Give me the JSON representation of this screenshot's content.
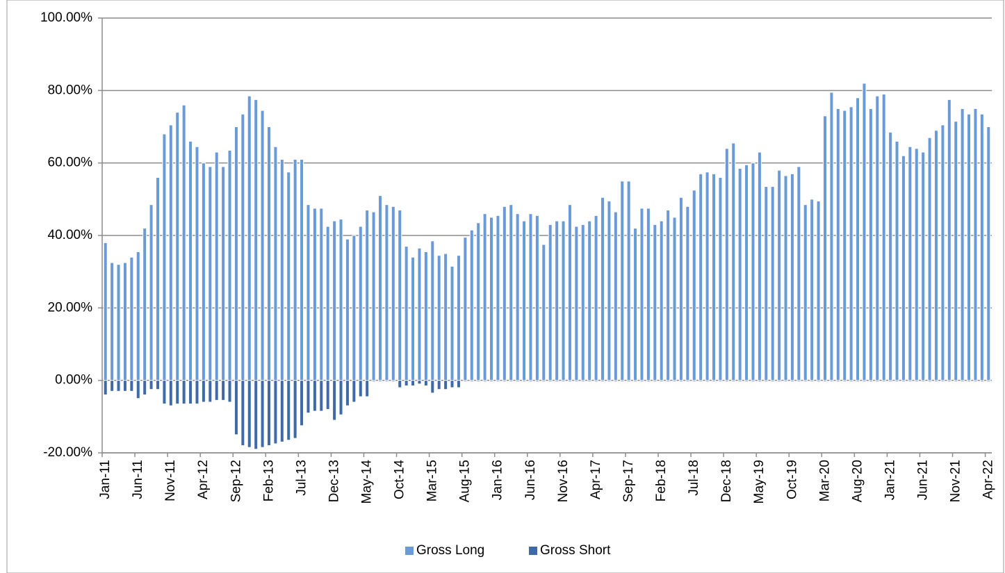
{
  "chart_data": {
    "type": "bar",
    "categories": [
      "Jan-11",
      null,
      null,
      null,
      null,
      "Jun-11",
      null,
      null,
      null,
      null,
      "Nov-11",
      null,
      null,
      null,
      null,
      "Apr-12",
      null,
      null,
      null,
      null,
      "Sep-12",
      null,
      null,
      null,
      null,
      "Feb-13",
      null,
      null,
      null,
      null,
      "Jul-13",
      null,
      null,
      null,
      null,
      "Dec-13",
      null,
      null,
      null,
      null,
      "May-14",
      null,
      null,
      null,
      null,
      "Oct-14",
      null,
      null,
      null,
      null,
      "Mar-15",
      null,
      null,
      null,
      null,
      "Aug-15",
      null,
      null,
      null,
      null,
      "Jan-16",
      null,
      null,
      null,
      null,
      "Jun-16",
      null,
      null,
      null,
      null,
      "Nov-16",
      null,
      null,
      null,
      null,
      "Apr-17",
      null,
      null,
      null,
      null,
      "Sep-17",
      null,
      null,
      null,
      null,
      "Feb-18",
      null,
      null,
      null,
      null,
      "Jul-18",
      null,
      null,
      null,
      null,
      "Dec-18",
      null,
      null,
      null,
      null,
      "May-19",
      null,
      null,
      null,
      null,
      "Oct-19",
      null,
      null,
      null,
      null,
      "Mar-20",
      null,
      null,
      null,
      null,
      "Aug-20",
      null,
      null,
      null,
      null,
      "Jan-21",
      null,
      null,
      null,
      null,
      "Jun-21",
      null,
      null,
      null,
      null,
      "Nov-21",
      null,
      null,
      null,
      null,
      "Apr-22"
    ],
    "series": [
      {
        "name": "Gross Long",
        "color": "#6a9bd8",
        "values": [
          38,
          32.5,
          32,
          32.5,
          34,
          35.5,
          42,
          48.5,
          56,
          68,
          70.5,
          74,
          76,
          66,
          64.5,
          60,
          59,
          63,
          59,
          63.5,
          70,
          73.5,
          78.5,
          77.5,
          74.5,
          70,
          64.5,
          61,
          57.5,
          61,
          61,
          48.5,
          47.5,
          47.5,
          42.5,
          44,
          44.5,
          39,
          40,
          42.5,
          47,
          46.5,
          51,
          48.5,
          48,
          47,
          37,
          34,
          36.5,
          35.5,
          38.5,
          34.5,
          35,
          31.5,
          34.5,
          39.5,
          41.5,
          43.5,
          46,
          45,
          45.5,
          48,
          48.5,
          46,
          44,
          46,
          45.5,
          37.5,
          43,
          44,
          44,
          48.5,
          42.5,
          43,
          44,
          45.5,
          50.5,
          49.5,
          46.5,
          55,
          55,
          42,
          47.5,
          47.5,
          43,
          44,
          47,
          45,
          50.5,
          48,
          52.5,
          57,
          57.5,
          57,
          56,
          64,
          65.5,
          58.5,
          59.5,
          60,
          63,
          53.5,
          53.5,
          58,
          56.5,
          57,
          59,
          48.5,
          50,
          49.5,
          73,
          79.5,
          75,
          74.5,
          75.5,
          78,
          82,
          75,
          78.5,
          79,
          68.5,
          66,
          62,
          64.5,
          64,
          63,
          67,
          69,
          70.5,
          77.5,
          71.5,
          75,
          73.5,
          75,
          73.5,
          70
        ]
      },
      {
        "name": "Gross Short",
        "color": "#3e6aa8",
        "values": [
          -4,
          -3,
          -3,
          -3,
          -3,
          -5,
          -4,
          -2.5,
          -2.5,
          -6.5,
          -7,
          -6.5,
          -6.5,
          -6.5,
          -6.5,
          -6,
          -6,
          -5.5,
          -5.5,
          -6,
          -15,
          -18,
          -18.5,
          -19,
          -18.5,
          -18,
          -17.5,
          -17,
          -16.5,
          -16,
          -12.5,
          -9,
          -8.5,
          -8.5,
          -8,
          -11,
          -9.5,
          -7,
          -6,
          -4.5,
          -4.5,
          -0.3,
          -0.3,
          -0.3,
          -0.3,
          -2,
          -1.5,
          -1.5,
          -1,
          -1.5,
          -3.5,
          -2.5,
          -2.5,
          -2,
          -2,
          -0.3,
          -0.3,
          -0.3,
          -0.3,
          -0.3,
          -0.3,
          -0.3,
          -0.3,
          -0.3,
          -0.3,
          -0.3,
          -0.3,
          -0.3,
          -0.3,
          -0.3,
          -0.3,
          -0.3,
          -0.3,
          -0.3,
          -0.3,
          -0.3,
          -0.3,
          -0.3,
          -0.3,
          -0.3,
          -0.3,
          -0.3,
          -0.3,
          -0.3,
          -0.3,
          -0.3,
          -0.3,
          -0.3,
          -0.3,
          -0.3,
          -0.3,
          -0.3,
          -0.3,
          -0.3,
          -0.3,
          -0.3,
          -0.3,
          -0.3,
          -0.3,
          -0.3,
          -0.3,
          -0.3,
          -0.3,
          -0.3,
          -0.3,
          -0.3,
          -0.3,
          -0.3,
          -0.3,
          -0.3,
          -0.3,
          -0.3,
          -0.3,
          -0.3,
          -0.3,
          -0.3,
          -0.3,
          -0.3,
          -0.3,
          -0.3,
          -0.3,
          -0.3,
          -0.3,
          -0.3,
          -0.3,
          -0.3,
          -0.3,
          -0.3,
          -0.3,
          -0.3,
          -0.3,
          -0.3,
          -0.3,
          -0.3,
          -0.3,
          -0.3
        ]
      }
    ],
    "ylim": [
      -20,
      100
    ],
    "yticks": [
      {
        "value": -20,
        "label": "-20.00%"
      },
      {
        "value": 0,
        "label": "0.00%"
      },
      {
        "value": 20,
        "label": "20.00%"
      },
      {
        "value": 40,
        "label": "40.00%"
      },
      {
        "value": 60,
        "label": "60.00%"
      },
      {
        "value": 80,
        "label": "80.00%"
      },
      {
        "value": 100,
        "label": "100.00%"
      }
    ],
    "grid": true,
    "legend": "bottom"
  }
}
